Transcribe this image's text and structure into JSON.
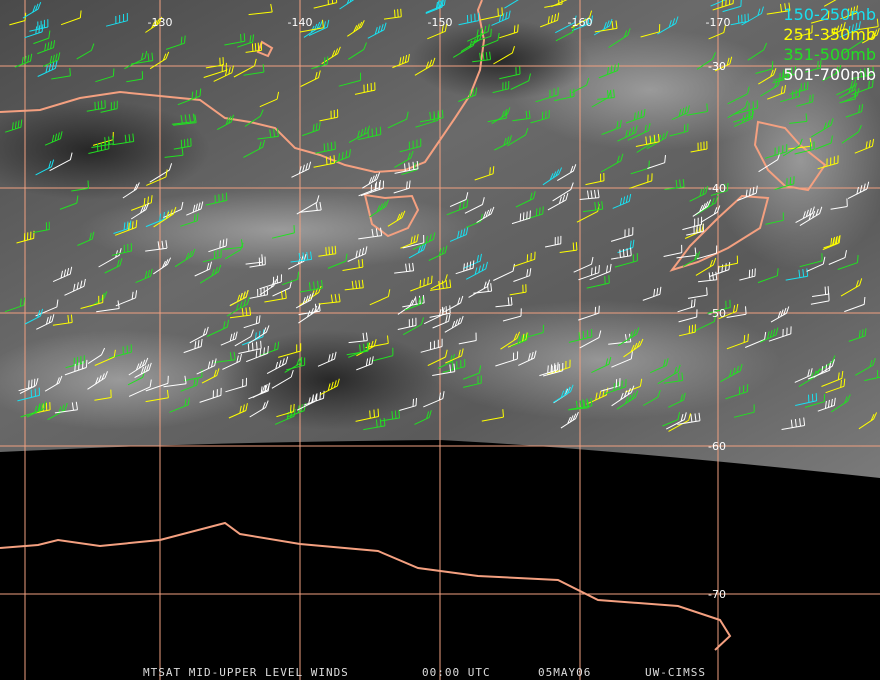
{
  "map": {
    "longitude_labels": [
      "-130",
      "-140",
      "-150",
      "-160",
      "-170"
    ],
    "latitude_labels": [
      "-30",
      "-40",
      "-50",
      "-60",
      "-70"
    ],
    "legend": [
      {
        "label": "150-250mb",
        "color": "#19e0f0"
      },
      {
        "label": "251-350mb",
        "color": "#ffff00"
      },
      {
        "label": "351-500mb",
        "color": "#22e022"
      },
      {
        "label": "501-700mb",
        "color": "#ffffff"
      }
    ],
    "footer": {
      "title": "MTSAT MID-UPPER LEVEL WINDS",
      "time": "00:00 UTC",
      "date": "05MAY06",
      "credit": "UW-CIMSS"
    }
  }
}
